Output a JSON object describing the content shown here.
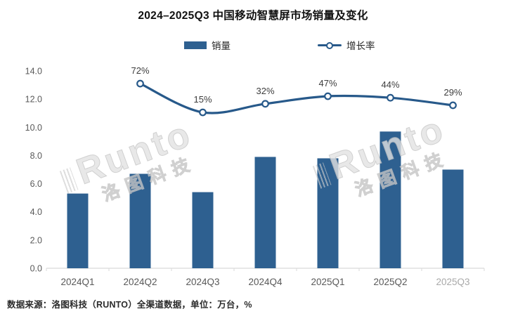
{
  "title": "2024–2025Q3 中国移动智慧屏市场销量及变化",
  "legend": {
    "bar_label": "销量",
    "line_label": "增长率"
  },
  "source_note": "数据来源：洛图科技（RUNTO）全渠道数据，单位：万台，%",
  "watermark": {
    "latin": "Runto",
    "cjk": "洛图科技"
  },
  "colors": {
    "bar": "#2e6090",
    "line": "#27598a",
    "axis_text": "#595959",
    "faded_axis_text": "#a9a9a9",
    "data_label": "#3d3d3d",
    "axis_line": "#d9d9d9",
    "title_text": "#111111"
  },
  "chart_data": {
    "type": "bar+line",
    "title": "2024–2025Q3 中国移动智慧屏市场销量及变化",
    "categories": [
      "2024Q1",
      "2024Q2",
      "2024Q3",
      "2024Q4",
      "2025Q1",
      "2025Q2",
      "2025Q3"
    ],
    "series": [
      {
        "name": "销量",
        "kind": "bar",
        "unit": "万台",
        "values": [
          5.3,
          6.7,
          5.4,
          7.9,
          7.8,
          9.7,
          7.0
        ]
      },
      {
        "name": "增长率",
        "kind": "line",
        "unit": "%",
        "values": [
          null,
          72,
          15,
          32,
          47,
          44,
          29
        ],
        "labels": [
          "",
          "72%",
          "15%",
          "32%",
          "47%",
          "44%",
          "29%"
        ]
      }
    ],
    "xlabel": "",
    "ylabel": "",
    "ylim": [
      0,
      14
    ],
    "ytick_step": 2,
    "ytick_labels": [
      "0.0",
      "2.0",
      "4.0",
      "6.0",
      "8.0",
      "10.0",
      "12.0",
      "14.0"
    ],
    "grid": false,
    "legend_position": "top",
    "secondary_axis_visible": false
  }
}
